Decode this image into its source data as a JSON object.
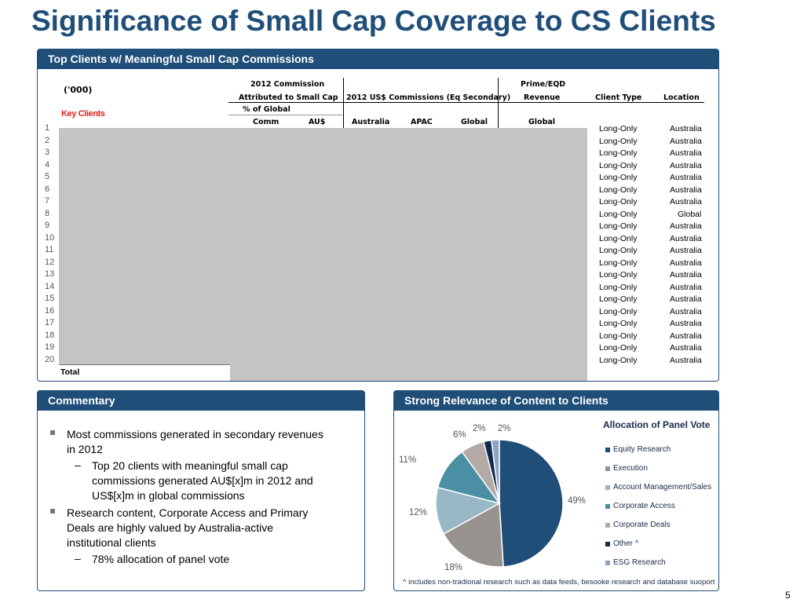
{
  "title": "Significance of Small Cap Coverage to CS Clients",
  "page_number": "5",
  "top_panel": {
    "header": "Top Clients w/ Meaningful Small Cap Commissions",
    "units": "('000)",
    "key_clients": "Key Clients",
    "headers": {
      "commission_2012": "2012 Commission",
      "attributed": "Attributed to Small Cap",
      "pct_global": "% of Global",
      "comm": "Comm",
      "aud": "AU$",
      "us_commissions": "2012 US$ Commissions (Eq Secondary)",
      "australia": "Australia",
      "apac": "APAC",
      "global": "Global",
      "prime_eqd": "Prime/EQD",
      "revenue": "Revenue",
      "global2": "Global",
      "client_type": "Client Type",
      "location": "Location"
    },
    "rows": [
      {
        "num": "1",
        "type": "Long-Only",
        "location": "Australia"
      },
      {
        "num": "2",
        "type": "Long-Only",
        "location": "Australia"
      },
      {
        "num": "3",
        "type": "Long-Only",
        "location": "Australia"
      },
      {
        "num": "4",
        "type": "Long-Only",
        "location": "Australia"
      },
      {
        "num": "5",
        "type": "Long-Only",
        "location": "Australia"
      },
      {
        "num": "6",
        "type": "Long-Only",
        "location": "Australia"
      },
      {
        "num": "7",
        "type": "Long-Only",
        "location": "Australia"
      },
      {
        "num": "8",
        "type": "Long-Only",
        "location": "Global"
      },
      {
        "num": "9",
        "type": "Long-Only",
        "location": "Australia"
      },
      {
        "num": "10",
        "type": "Long-Only",
        "location": "Australia"
      },
      {
        "num": "11",
        "type": "Long-Only",
        "location": "Australia"
      },
      {
        "num": "12",
        "type": "Long-Only",
        "location": "Australia"
      },
      {
        "num": "13",
        "type": "Long-Only",
        "location": "Australia"
      },
      {
        "num": "14",
        "type": "Long-Only",
        "location": "Australia"
      },
      {
        "num": "15",
        "type": "Long-Only",
        "location": "Australia"
      },
      {
        "num": "16",
        "type": "Long-Only",
        "location": "Australia"
      },
      {
        "num": "17",
        "type": "Long-Only",
        "location": "Australia"
      },
      {
        "num": "18",
        "type": "Long-Only",
        "location": "Australia"
      },
      {
        "num": "19",
        "type": "Long-Only",
        "location": "Australia"
      },
      {
        "num": "20",
        "type": "Long-Only",
        "location": "Australia"
      }
    ],
    "total_label": "Total"
  },
  "commentary": {
    "header": "Commentary",
    "b1_l1": "Most commissions generated in secondary revenues",
    "b1_l2": "in 2012",
    "s1_l1": "Top 20 clients with meaningful small cap",
    "s1_l2": "commissions generated AU$[x]m in 2012 and",
    "s1_l3": "US$[x]m in global commissions",
    "b2_l1": "Research content, Corporate Access and Primary",
    "b2_l2": "Deals are highly valued by Australia-active",
    "b2_l3": "institutional clients",
    "s2_l1": "78% allocation of panel vote"
  },
  "relevance": {
    "header": "Strong Relevance of Content to Clients",
    "footnote": "^ includes non-tradional research such as data feeds, besooke research and database suoport"
  },
  "chart_data": {
    "type": "pie",
    "title": "Allocation of Panel Vote",
    "slices": [
      {
        "name": "Equity Research",
        "value": 49,
        "label": "49%",
        "color": "#1f4e79"
      },
      {
        "name": "Execution",
        "value": 18,
        "label": "18%",
        "color": "#98938f"
      },
      {
        "name": "Account Management/Sales",
        "value": 12,
        "label": "12%",
        "color": "#97b8c4"
      },
      {
        "name": "Corporate Access",
        "value": 11,
        "label": "11%",
        "color": "#4a8fa3"
      },
      {
        "name": "Corporate Deals",
        "value": 6,
        "label": "6%",
        "color": "#b3aaa5"
      },
      {
        "name": "Other ^",
        "value": 2,
        "label": "2%",
        "color": "#0f2a4d"
      },
      {
        "name": "ESG Research",
        "value": 2,
        "label": "2%",
        "color": "#8fa3c7"
      }
    ]
  }
}
